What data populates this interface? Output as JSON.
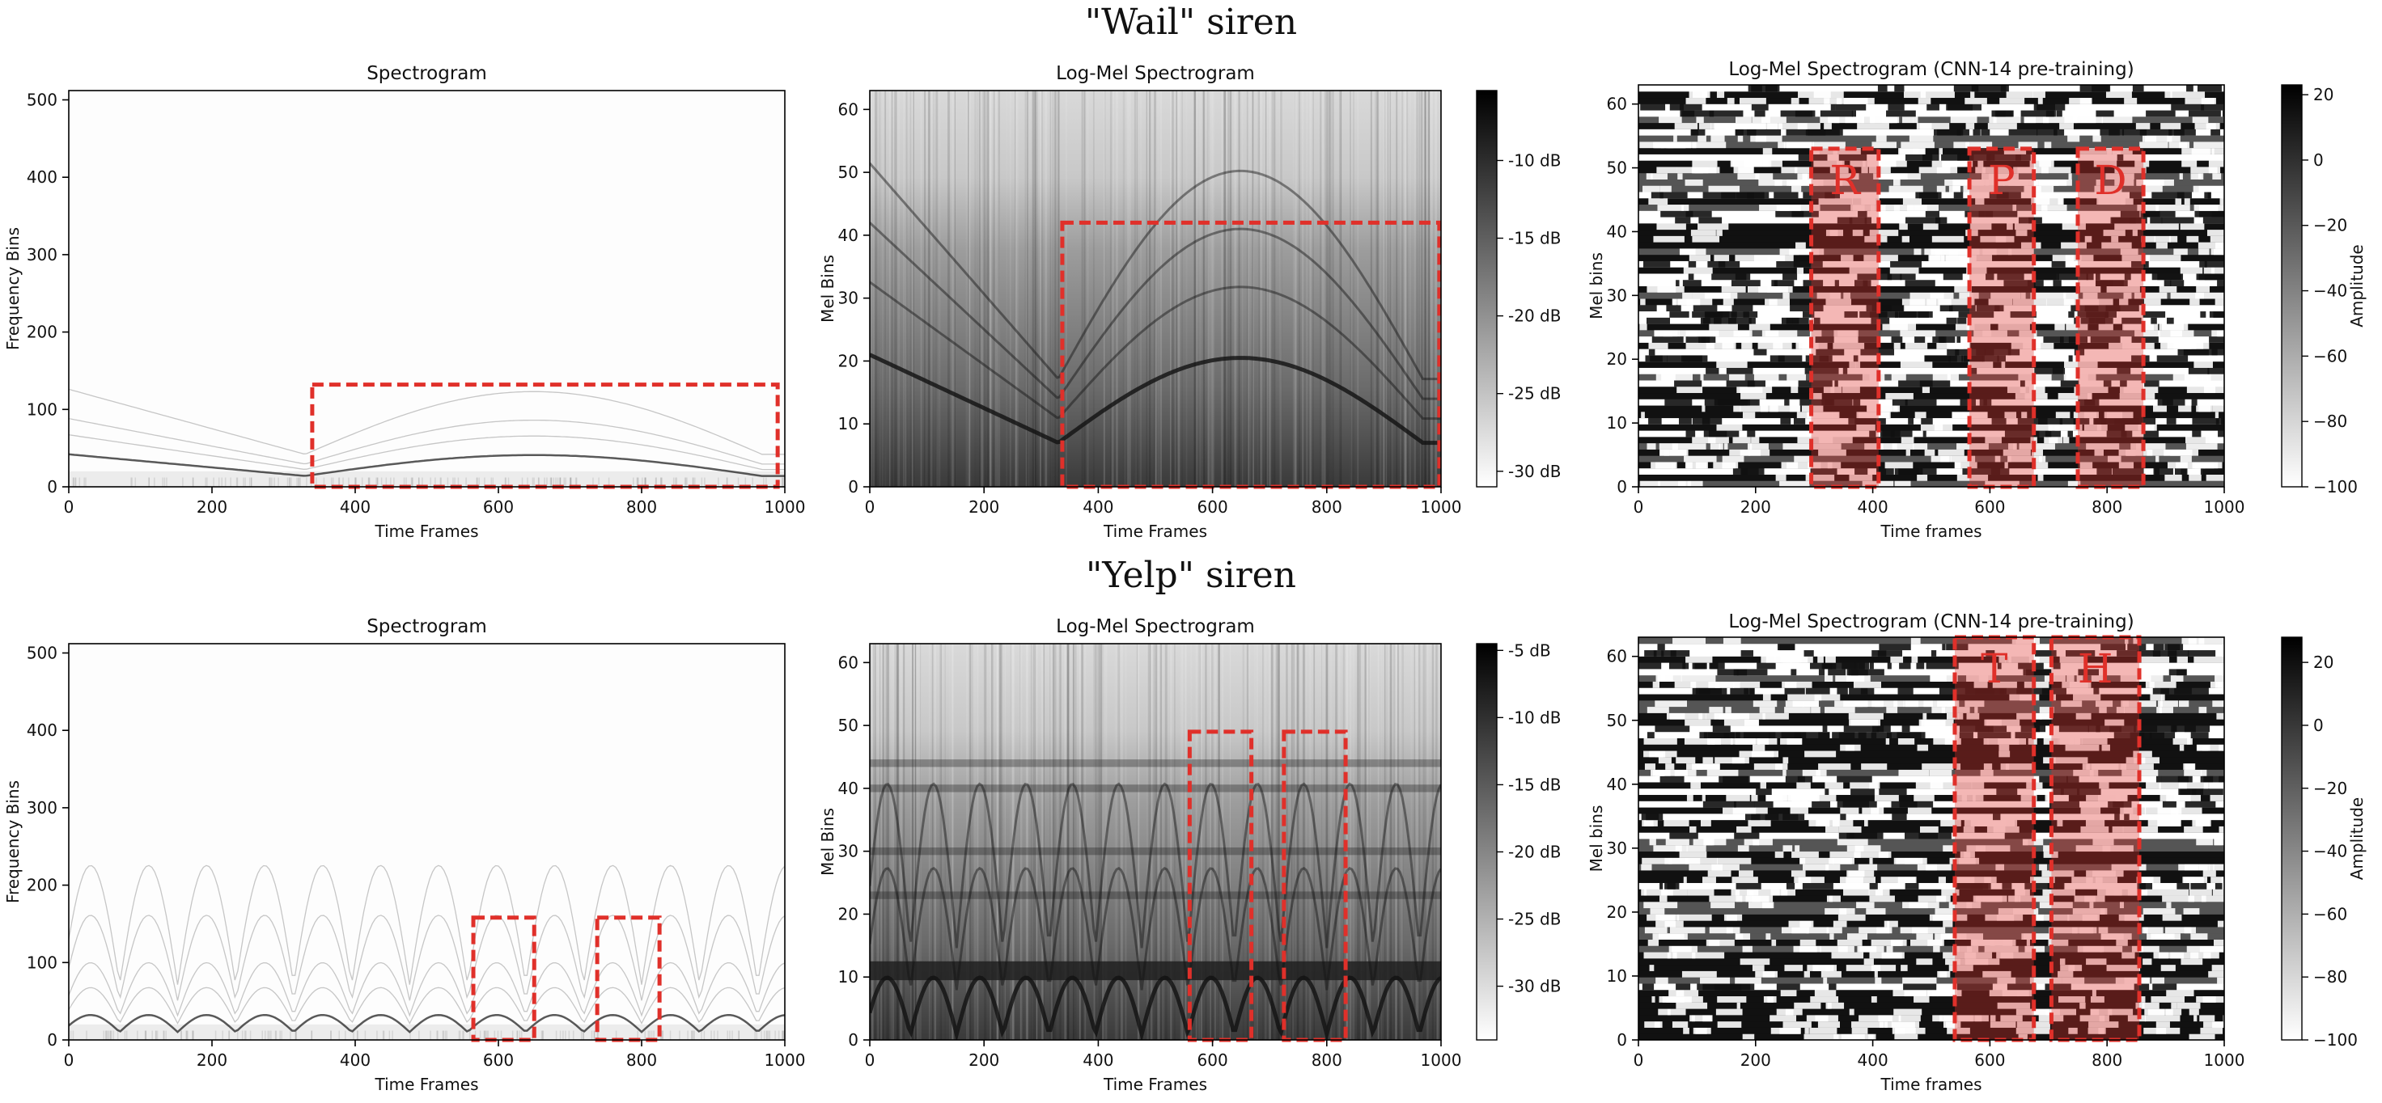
{
  "rows": [
    {
      "title": "\"Wail\" siren"
    },
    {
      "title": "\"Yelp\" siren"
    }
  ],
  "colors": {
    "box": "#e0302a",
    "fill": "#e0302a",
    "axis": "#000000"
  },
  "chart_data": [
    {
      "id": "wail-spec",
      "type": "heatmap",
      "title": "Spectrogram",
      "xlabel": "Time Frames",
      "ylabel": "Frequency Bins",
      "xlim": [
        0,
        1000
      ],
      "ylim": [
        0,
        512
      ],
      "xticks": [
        0,
        200,
        400,
        600,
        800,
        1000
      ],
      "yticks": [
        0,
        100,
        200,
        300,
        400,
        500
      ],
      "pattern": "wail",
      "style": "light",
      "boxes": [
        {
          "x0": 340,
          "x1": 990,
          "y0": 0,
          "y1": 132
        }
      ]
    },
    {
      "id": "wail-mel",
      "type": "heatmap",
      "title": "Log-Mel Spectrogram",
      "xlabel": "Time Frames",
      "ylabel": "Mel Bins",
      "xlim": [
        0,
        1000
      ],
      "ylim": [
        0,
        63
      ],
      "xticks": [
        0,
        200,
        400,
        600,
        800,
        1000
      ],
      "yticks": [
        0,
        10,
        20,
        30,
        40,
        50,
        60
      ],
      "pattern": "wail",
      "style": "mel",
      "colorbar": {
        "ticks": [
          "-10 dB",
          "-15 dB",
          "-20 dB",
          "-25 dB",
          "-30 dB"
        ],
        "values": [
          -10,
          -15,
          -20,
          -25,
          -30
        ],
        "range": [
          -31,
          -5.5
        ]
      },
      "boxes": [
        {
          "x0": 337,
          "x1": 997,
          "y0": 0,
          "y1": 42
        }
      ]
    },
    {
      "id": "wail-cnn",
      "type": "heatmap",
      "title": "Log-Mel Spectrogram (CNN-14 pre-training)",
      "xlabel": "Time frames",
      "ylabel": "Mel bins",
      "xlim": [
        0,
        1000
      ],
      "ylim": [
        0,
        63
      ],
      "xticks": [
        0,
        200,
        400,
        600,
        800,
        1000
      ],
      "yticks": [
        0,
        10,
        20,
        30,
        40,
        50,
        60
      ],
      "pattern": "wail",
      "style": "binary",
      "colorbar": {
        "label": "Amplitude",
        "ticks": [
          "20",
          "0",
          "−20",
          "−40",
          "−60",
          "−80",
          "−100"
        ],
        "values": [
          20,
          0,
          -20,
          -40,
          -60,
          -80,
          -100
        ],
        "range": [
          -100,
          23
        ]
      },
      "regions": [
        {
          "x0": 295,
          "x1": 410,
          "y0": 0,
          "y1": 53,
          "letter": "R"
        },
        {
          "x0": 565,
          "x1": 675,
          "y0": 0,
          "y1": 53,
          "letter": "P"
        },
        {
          "x0": 750,
          "x1": 862,
          "y0": 0,
          "y1": 53,
          "letter": "D"
        }
      ]
    },
    {
      "id": "yelp-spec",
      "type": "heatmap",
      "title": "Spectrogram",
      "xlabel": "Time Frames",
      "ylabel": "Frequency Bins",
      "xlim": [
        0,
        1000
      ],
      "ylim": [
        0,
        512
      ],
      "xticks": [
        0,
        200,
        400,
        600,
        800,
        1000
      ],
      "yticks": [
        0,
        100,
        200,
        300,
        400,
        500
      ],
      "pattern": "yelp",
      "style": "light",
      "boxes": [
        {
          "x0": 565,
          "x1": 650,
          "y0": 0,
          "y1": 158
        },
        {
          "x0": 738,
          "x1": 825,
          "y0": 0,
          "y1": 158
        }
      ]
    },
    {
      "id": "yelp-mel",
      "type": "heatmap",
      "title": "Log-Mel Spectrogram",
      "xlabel": "Time Frames",
      "ylabel": "Mel Bins",
      "xlim": [
        0,
        1000
      ],
      "ylim": [
        0,
        63
      ],
      "xticks": [
        0,
        200,
        400,
        600,
        800,
        1000
      ],
      "yticks": [
        0,
        10,
        20,
        30,
        40,
        50,
        60
      ],
      "pattern": "yelp",
      "style": "mel",
      "colorbar": {
        "ticks": [
          "-5 dB",
          "-10 dB",
          "-15 dB",
          "-20 dB",
          "-25 dB",
          "-30 dB"
        ],
        "values": [
          -5,
          -10,
          -15,
          -20,
          -25,
          -30
        ],
        "range": [
          -34,
          -4.5
        ]
      },
      "boxes": [
        {
          "x0": 560,
          "x1": 668,
          "y0": 0,
          "y1": 49
        },
        {
          "x0": 725,
          "x1": 833,
          "y0": 0,
          "y1": 49
        }
      ]
    },
    {
      "id": "yelp-cnn",
      "type": "heatmap",
      "title": "Log-Mel Spectrogram (CNN-14 pre-training)",
      "xlabel": "Time frames",
      "ylabel": "Mel bins",
      "xlim": [
        0,
        1000
      ],
      "ylim": [
        0,
        63
      ],
      "xticks": [
        0,
        200,
        400,
        600,
        800,
        1000
      ],
      "yticks": [
        0,
        10,
        20,
        30,
        40,
        50,
        60
      ],
      "pattern": "yelp",
      "style": "binary",
      "colorbar": {
        "label": "Amplitude",
        "ticks": [
          "20",
          "0",
          "−20",
          "−40",
          "−60",
          "−80",
          "−100"
        ],
        "values": [
          20,
          0,
          -20,
          -40,
          -60,
          -80,
          -100
        ],
        "range": [
          -100,
          28
        ]
      },
      "regions": [
        {
          "x0": 540,
          "x1": 675,
          "y0": 0,
          "y1": 63,
          "letter": "T"
        },
        {
          "x0": 705,
          "x1": 855,
          "y0": 0,
          "y1": 63,
          "letter": "H"
        }
      ]
    }
  ]
}
